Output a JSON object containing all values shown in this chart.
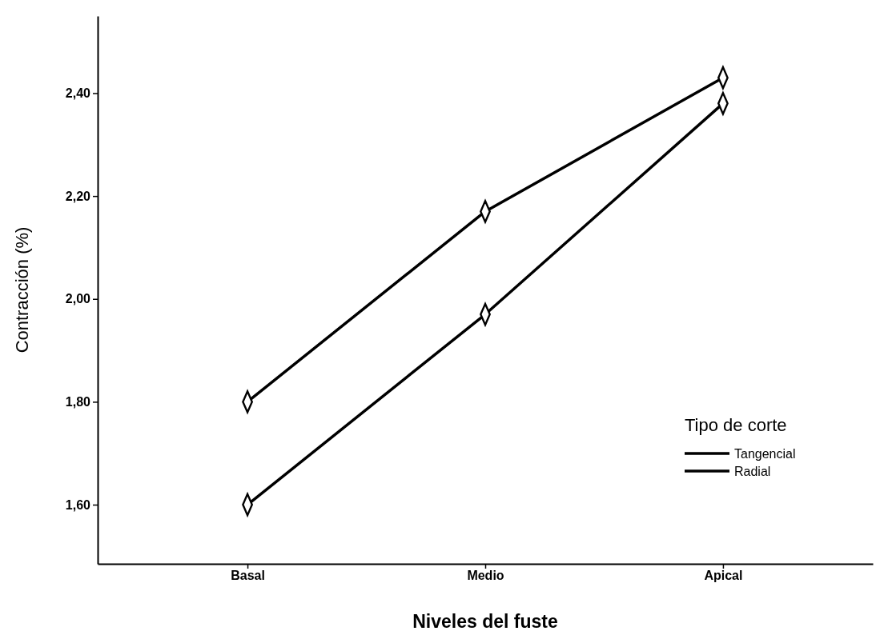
{
  "chart_data": {
    "type": "line",
    "xlabel": "Niveles del fuste",
    "ylabel": "Contracción (%)",
    "legend_title": "Tipo de corte",
    "categories": [
      "Basal",
      "Medio",
      "Apical"
    ],
    "series": [
      {
        "name": "Tangencial",
        "color": "#000000",
        "values": [
          1.8,
          2.17,
          2.43
        ]
      },
      {
        "name": "Radial",
        "color": "#000000",
        "values": [
          1.6,
          1.97,
          2.38
        ]
      }
    ],
    "ylim": [
      1.485,
      2.55
    ],
    "yticks": [
      {
        "value": 1.6,
        "label": "1,60"
      },
      {
        "value": 1.8,
        "label": "1,80"
      },
      {
        "value": 2.0,
        "label": "2,00"
      },
      {
        "value": 2.2,
        "label": "2,20"
      },
      {
        "value": 2.4,
        "label": "2,40"
      }
    ],
    "grid": false,
    "legend": "bottom right",
    "marker": "diamond",
    "line_style": "solid"
  }
}
